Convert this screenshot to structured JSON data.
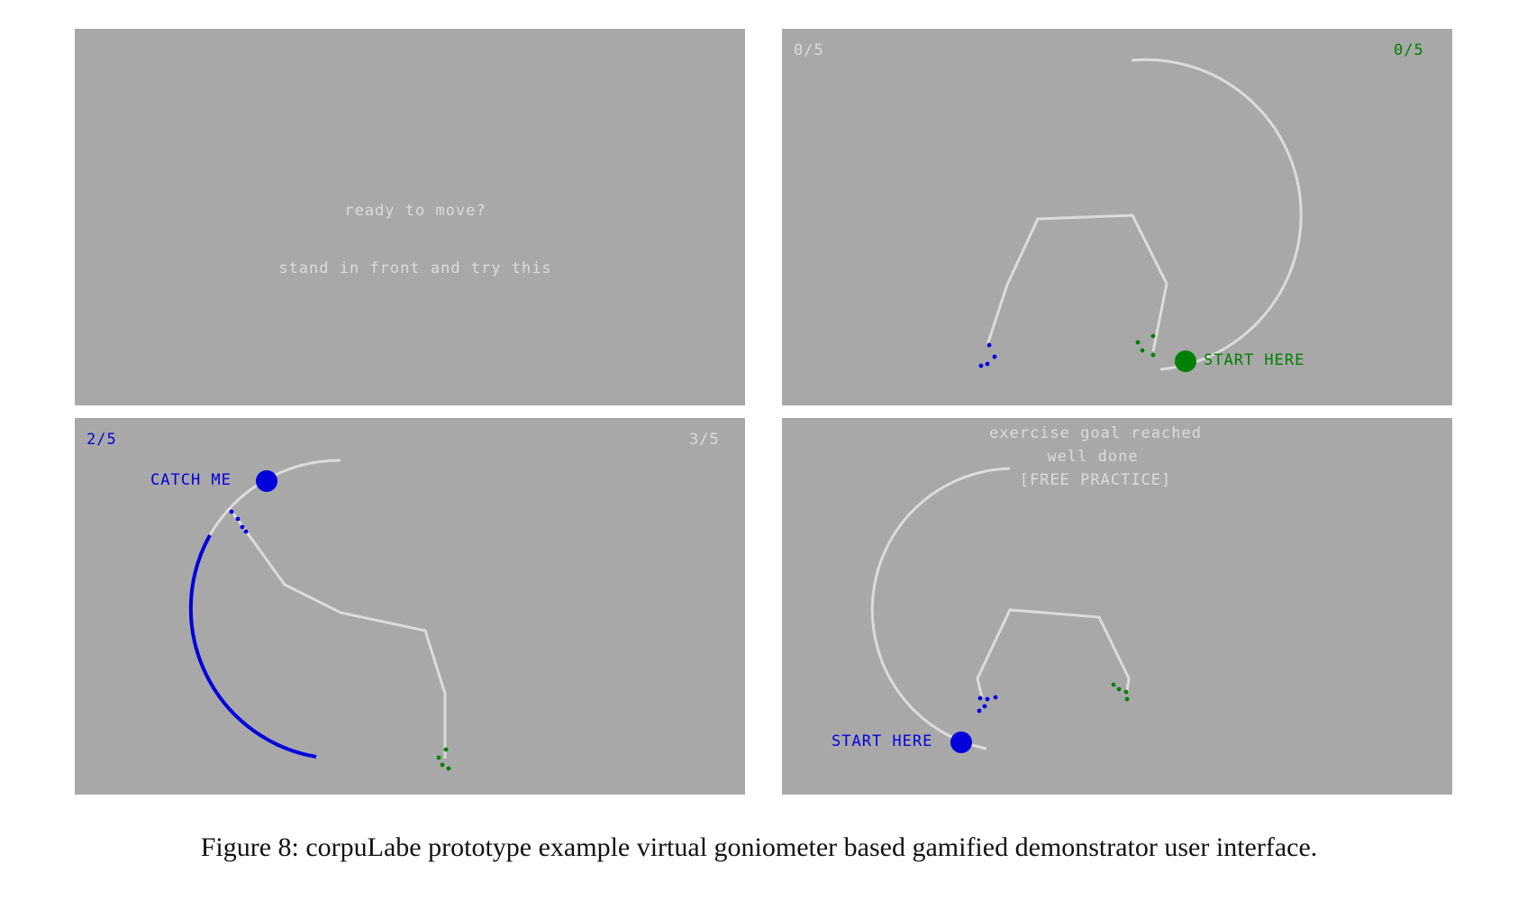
{
  "panels": {
    "ready": {
      "line1": "ready to move?",
      "line2": "stand in front and try this"
    },
    "start": {
      "score_left": "0/5",
      "score_right": "0/5",
      "target_label": "START HERE",
      "target_color": "#008000"
    },
    "catch": {
      "score_left": "2/5",
      "score_right": "3/5",
      "target_label": "CATCH ME",
      "target_color": "#0000dd"
    },
    "goal": {
      "line1": "exercise goal reached",
      "line2": "well done",
      "line3": "[FREE PRACTICE]",
      "target_label": "START HERE",
      "target_color": "#0000dd"
    }
  },
  "colors": {
    "panel_bg": "#a8a8a8",
    "skeleton": "#dcdcdc",
    "left_hand": "#0000dd",
    "right_hand": "#008000"
  },
  "caption": "Figure 8: corpuLabe prototype example virtual goniometer based gamified demonstrator user interface."
}
